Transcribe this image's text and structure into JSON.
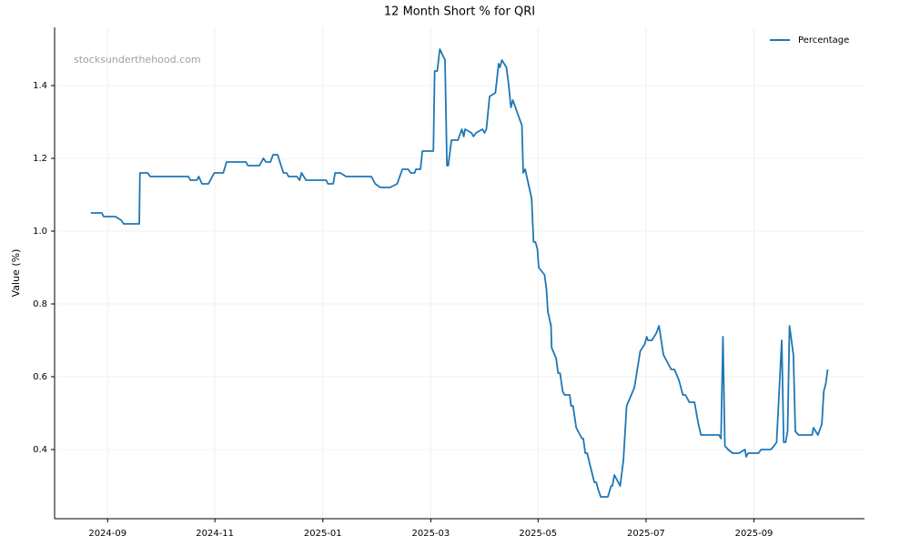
{
  "chart_data": {
    "type": "line",
    "title": "12 Month Short % for QRI",
    "y_label": "Value (%)",
    "annotation": "stocksunderthehood.com",
    "legend": "upper right",
    "grid": true,
    "xlim": [
      2024.585,
      2025.838
    ],
    "ylim": [
      0.21,
      1.56
    ],
    "xticks": [
      {
        "value": 2024.667,
        "label": "2024-09"
      },
      {
        "value": 2024.833,
        "label": "2024-11"
      },
      {
        "value": 2025.0,
        "label": "2025-01"
      },
      {
        "value": 2025.167,
        "label": "2025-03"
      },
      {
        "value": 2025.333,
        "label": "2025-05"
      },
      {
        "value": 2025.5,
        "label": "2025-07"
      },
      {
        "value": 2025.667,
        "label": "2025-09"
      }
    ],
    "yticks": [
      0.4,
      0.6,
      0.8,
      {
        "value": 1,
        "label": "1.0"
      },
      1.2,
      1.4
    ],
    "x": [
      2024.641,
      2024.658,
      2024.661,
      2024.679,
      2024.688,
      2024.692,
      2024.716,
      2024.717,
      2024.729,
      2024.733,
      2024.792,
      2024.795,
      2024.805,
      2024.808,
      2024.813,
      2024.823,
      2024.832,
      2024.846,
      2024.851,
      2024.881,
      2024.884,
      2024.902,
      2024.908,
      2024.912,
      2024.919,
      2024.923,
      2024.93,
      2024.939,
      2024.944,
      2024.947,
      2024.96,
      2024.964,
      2024.967,
      2024.974,
      2025.005,
      2025.008,
      2025.016,
      2025.019,
      2025.027,
      2025.036,
      2025.075,
      2025.081,
      2025.089,
      2025.104,
      2025.115,
      2025.123,
      2025.132,
      2025.136,
      2025.142,
      2025.144,
      2025.151,
      2025.154,
      2025.171,
      2025.173,
      2025.177,
      2025.181,
      2025.189,
      2025.192,
      2025.194,
      2025.199,
      2025.209,
      2025.215,
      2025.218,
      2025.22,
      2025.23,
      2025.233,
      2025.237,
      2025.247,
      2025.25,
      2025.253,
      2025.258,
      2025.267,
      2025.272,
      2025.274,
      2025.277,
      2025.284,
      2025.287,
      2025.291,
      2025.294,
      2025.308,
      2025.31,
      2025.313,
      2025.323,
      2025.326,
      2025.329,
      2025.332,
      2025.334,
      2025.343,
      2025.346,
      2025.348,
      2025.353,
      2025.354,
      2025.361,
      2025.364,
      2025.367,
      2025.371,
      2025.374,
      2025.382,
      2025.384,
      2025.387,
      2025.392,
      2025.401,
      2025.403,
      2025.406,
      2025.409,
      2025.413,
      2025.42,
      2025.423,
      2025.426,
      2025.43,
      2025.441,
      2025.446,
      2025.448,
      2025.451,
      2025.46,
      2025.465,
      2025.47,
      2025.482,
      2025.491,
      2025.498,
      2025.501,
      2025.503,
      2025.509,
      2025.516,
      2025.52,
      2025.527,
      2025.539,
      2025.544,
      2025.551,
      2025.557,
      2025.561,
      2025.567,
      2025.575,
      2025.581,
      2025.585,
      2025.613,
      2025.616,
      2025.619,
      2025.622,
      2025.627,
      2025.634,
      2025.644,
      2025.653,
      2025.655,
      2025.658,
      2025.674,
      2025.678,
      2025.693,
      2025.698,
      2025.702,
      2025.71,
      2025.713,
      2025.716,
      2025.719,
      2025.722,
      2025.728,
      2025.731,
      2025.736,
      2025.757,
      2025.759,
      2025.766,
      2025.772,
      2025.775,
      2025.778,
      2025.781
    ],
    "series": [
      {
        "name": "Percentage",
        "color": "#1f77b4",
        "values": [
          1.05,
          1.05,
          1.04,
          1.04,
          1.03,
          1.02,
          1.02,
          1.16,
          1.16,
          1.15,
          1.15,
          1.14,
          1.14,
          1.15,
          1.13,
          1.13,
          1.16,
          1.16,
          1.19,
          1.19,
          1.18,
          1.18,
          1.2,
          1.19,
          1.19,
          1.21,
          1.21,
          1.16,
          1.16,
          1.15,
          1.15,
          1.14,
          1.16,
          1.14,
          1.14,
          1.13,
          1.13,
          1.16,
          1.16,
          1.15,
          1.15,
          1.13,
          1.12,
          1.12,
          1.13,
          1.17,
          1.17,
          1.16,
          1.16,
          1.17,
          1.17,
          1.22,
          1.22,
          1.44,
          1.44,
          1.5,
          1.47,
          1.18,
          1.18,
          1.25,
          1.25,
          1.28,
          1.26,
          1.28,
          1.27,
          1.26,
          1.27,
          1.28,
          1.27,
          1.28,
          1.37,
          1.38,
          1.46,
          1.45,
          1.47,
          1.45,
          1.41,
          1.34,
          1.36,
          1.29,
          1.16,
          1.17,
          1.09,
          0.97,
          0.97,
          0.95,
          0.9,
          0.88,
          0.84,
          0.78,
          0.74,
          0.68,
          0.65,
          0.61,
          0.61,
          0.56,
          0.55,
          0.55,
          0.52,
          0.52,
          0.46,
          0.43,
          0.43,
          0.39,
          0.39,
          0.36,
          0.31,
          0.31,
          0.29,
          0.27,
          0.27,
          0.3,
          0.3,
          0.33,
          0.3,
          0.37,
          0.52,
          0.57,
          0.67,
          0.69,
          0.71,
          0.7,
          0.7,
          0.72,
          0.74,
          0.66,
          0.62,
          0.62,
          0.59,
          0.55,
          0.55,
          0.53,
          0.53,
          0.47,
          0.44,
          0.44,
          0.43,
          0.71,
          0.41,
          0.4,
          0.39,
          0.39,
          0.4,
          0.38,
          0.39,
          0.39,
          0.4,
          0.4,
          0.41,
          0.42,
          0.7,
          0.42,
          0.42,
          0.45,
          0.74,
          0.66,
          0.45,
          0.44,
          0.44,
          0.46,
          0.44,
          0.47,
          0.56,
          0.58,
          0.62
        ]
      }
    ]
  }
}
